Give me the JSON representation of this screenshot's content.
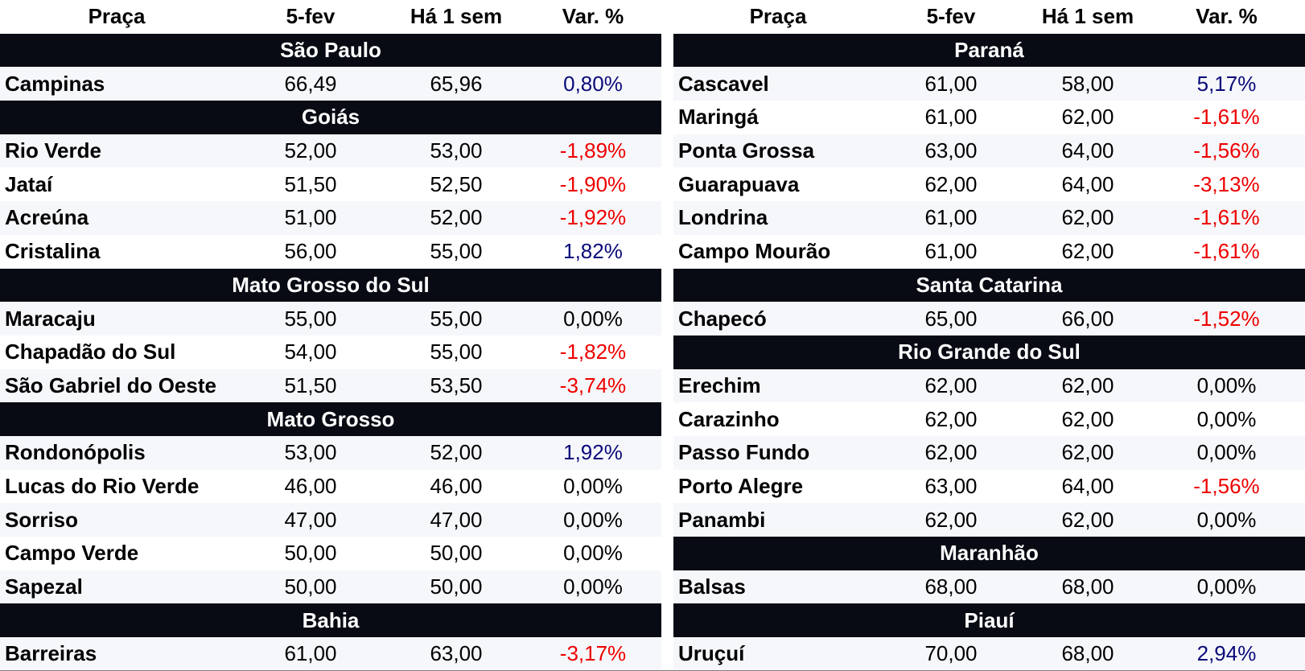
{
  "headers": {
    "place": "Praça",
    "date_current": "5-fev",
    "date_prev": "Há 1 sem",
    "change": "Var. %"
  },
  "left": [
    {
      "region": "São Paulo",
      "rows": [
        {
          "place": "Campinas",
          "current": "66,49",
          "prev": "65,96",
          "change": "0,80%",
          "trend": "pos"
        }
      ]
    },
    {
      "region": "Goiás",
      "rows": [
        {
          "place": "Rio Verde",
          "current": "52,00",
          "prev": "53,00",
          "change": "-1,89%",
          "trend": "neg"
        },
        {
          "place": "Jataí",
          "current": "51,50",
          "prev": "52,50",
          "change": "-1,90%",
          "trend": "neg"
        },
        {
          "place": "Acreúna",
          "current": "51,00",
          "prev": "52,00",
          "change": "-1,92%",
          "trend": "neg"
        },
        {
          "place": "Cristalina",
          "current": "56,00",
          "prev": "55,00",
          "change": "1,82%",
          "trend": "pos"
        }
      ]
    },
    {
      "region": "Mato Grosso do Sul",
      "rows": [
        {
          "place": "Maracaju",
          "current": "55,00",
          "prev": "55,00",
          "change": "0,00%",
          "trend": "zero"
        },
        {
          "place": "Chapadão do Sul",
          "current": "54,00",
          "prev": "55,00",
          "change": "-1,82%",
          "trend": "neg"
        },
        {
          "place": "São Gabriel do Oeste",
          "current": "51,50",
          "prev": "53,50",
          "change": "-3,74%",
          "trend": "neg"
        }
      ]
    },
    {
      "region": "Mato Grosso",
      "rows": [
        {
          "place": "Rondonópolis",
          "current": "53,00",
          "prev": "52,00",
          "change": "1,92%",
          "trend": "pos"
        },
        {
          "place": "Lucas do Rio Verde",
          "current": "46,00",
          "prev": "46,00",
          "change": "0,00%",
          "trend": "zero"
        },
        {
          "place": "Sorriso",
          "current": "47,00",
          "prev": "47,00",
          "change": "0,00%",
          "trend": "zero"
        },
        {
          "place": "Campo Verde",
          "current": "50,00",
          "prev": "50,00",
          "change": "0,00%",
          "trend": "zero"
        },
        {
          "place": "Sapezal",
          "current": "50,00",
          "prev": "50,00",
          "change": "0,00%",
          "trend": "zero"
        }
      ]
    },
    {
      "region": "Bahia",
      "rows": [
        {
          "place": "Barreiras",
          "current": "61,00",
          "prev": "63,00",
          "change": "-3,17%",
          "trend": "neg"
        }
      ]
    }
  ],
  "right": [
    {
      "region": "Paraná",
      "rows": [
        {
          "place": "Cascavel",
          "current": "61,00",
          "prev": "58,00",
          "change": "5,17%",
          "trend": "pos"
        },
        {
          "place": "Maringá",
          "current": "61,00",
          "prev": "62,00",
          "change": "-1,61%",
          "trend": "neg"
        },
        {
          "place": "Ponta Grossa",
          "current": "63,00",
          "prev": "64,00",
          "change": "-1,56%",
          "trend": "neg"
        },
        {
          "place": "Guarapuava",
          "current": "62,00",
          "prev": "64,00",
          "change": "-3,13%",
          "trend": "neg"
        },
        {
          "place": "Londrina",
          "current": "61,00",
          "prev": "62,00",
          "change": "-1,61%",
          "trend": "neg"
        },
        {
          "place": "Campo Mourão",
          "current": "61,00",
          "prev": "62,00",
          "change": "-1,61%",
          "trend": "neg"
        }
      ]
    },
    {
      "region": "Santa Catarina",
      "rows": [
        {
          "place": "Chapecó",
          "current": "65,00",
          "prev": "66,00",
          "change": "-1,52%",
          "trend": "neg"
        }
      ]
    },
    {
      "region": "Rio Grande do Sul",
      "rows": [
        {
          "place": "Erechim",
          "current": "62,00",
          "prev": "62,00",
          "change": "0,00%",
          "trend": "zero"
        },
        {
          "place": "Carazinho",
          "current": "62,00",
          "prev": "62,00",
          "change": "0,00%",
          "trend": "zero"
        },
        {
          "place": "Passo Fundo",
          "current": "62,00",
          "prev": "62,00",
          "change": "0,00%",
          "trend": "zero"
        },
        {
          "place": "Porto Alegre",
          "current": "63,00",
          "prev": "64,00",
          "change": "-1,56%",
          "trend": "neg"
        },
        {
          "place": "Panambi",
          "current": "62,00",
          "prev": "62,00",
          "change": "0,00%",
          "trend": "zero"
        }
      ]
    },
    {
      "region": "Maranhão",
      "rows": [
        {
          "place": "Balsas",
          "current": "68,00",
          "prev": "68,00",
          "change": "0,00%",
          "trend": "zero"
        }
      ]
    },
    {
      "region": "Piauí",
      "rows": [
        {
          "place": "Uruçuí",
          "current": "70,00",
          "prev": "68,00",
          "change": "2,94%",
          "trend": "pos"
        }
      ]
    }
  ],
  "colors": {
    "region_bg": "#080b14",
    "negative": "#ee0000",
    "positive": "#0a0a7a",
    "alt_row_bg": "#f6f7fb"
  }
}
